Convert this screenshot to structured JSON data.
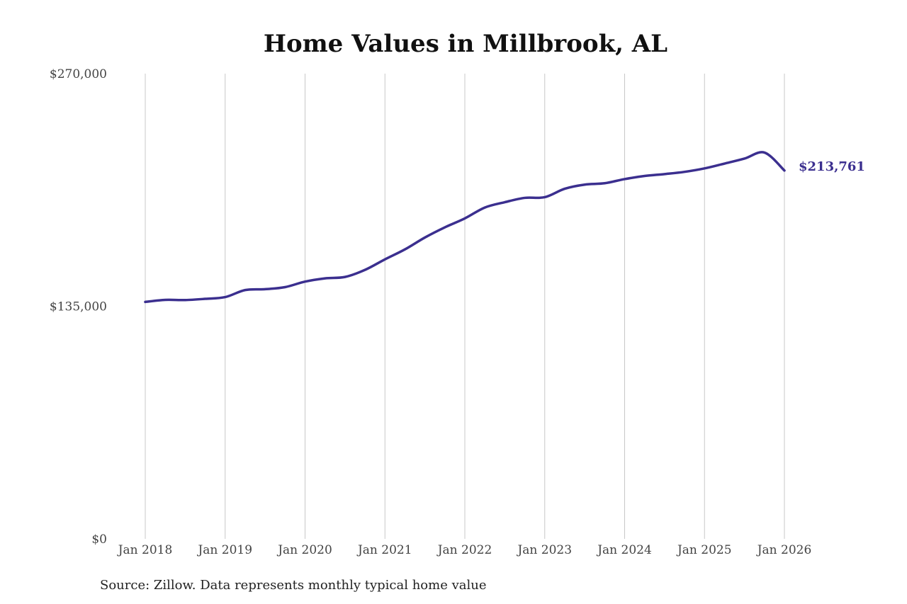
{
  "chart_data": {
    "type": "line",
    "title": "Home Values in Millbrook, AL",
    "source": "Source: Zillow. Data represents monthly typical home value",
    "xlabel": "",
    "ylabel": "",
    "ylim": [
      0,
      270000
    ],
    "y_ticks": [
      {
        "value": 0,
        "label": "$0"
      },
      {
        "value": 135000,
        "label": "$135,000"
      },
      {
        "value": 270000,
        "label": "$270,000"
      }
    ],
    "x_ticks": [
      {
        "value": 2018,
        "label": "Jan 2018"
      },
      {
        "value": 2019,
        "label": "Jan 2019"
      },
      {
        "value": 2020,
        "label": "Jan 2020"
      },
      {
        "value": 2021,
        "label": "Jan 2021"
      },
      {
        "value": 2022,
        "label": "Jan 2022"
      },
      {
        "value": 2023,
        "label": "Jan 2023"
      },
      {
        "value": 2024,
        "label": "Jan 2024"
      },
      {
        "value": 2025,
        "label": "Jan 2025"
      },
      {
        "value": 2026,
        "label": "Jan 2026"
      }
    ],
    "xlim": [
      2018,
      2026
    ],
    "grid": "vertical",
    "line_color": "#3b2f8f",
    "end_label": "$213,761",
    "series": [
      {
        "x": [
          2018.0,
          2018.25,
          2018.5,
          2018.75,
          2019.0,
          2019.25,
          2019.5,
          2019.75,
          2020.0,
          2020.25,
          2020.5,
          2020.75,
          2021.0,
          2021.25,
          2021.5,
          2021.75,
          2022.0,
          2022.25,
          2022.5,
          2022.75,
          2023.0,
          2023.25,
          2023.5,
          2023.75,
          2024.0,
          2024.25,
          2024.5,
          2024.75,
          2025.0,
          2025.25,
          2025.5,
          2025.75,
          2026.0
        ],
        "values": [
          137500,
          138700,
          138600,
          139300,
          140300,
          144400,
          144900,
          146100,
          149300,
          151200,
          152000,
          156100,
          162200,
          168000,
          174900,
          180800,
          186000,
          192300,
          195400,
          197900,
          198300,
          203200,
          205600,
          206400,
          208800,
          210600,
          211700,
          213000,
          215000,
          217800,
          220700,
          224200,
          213761
        ]
      }
    ]
  }
}
